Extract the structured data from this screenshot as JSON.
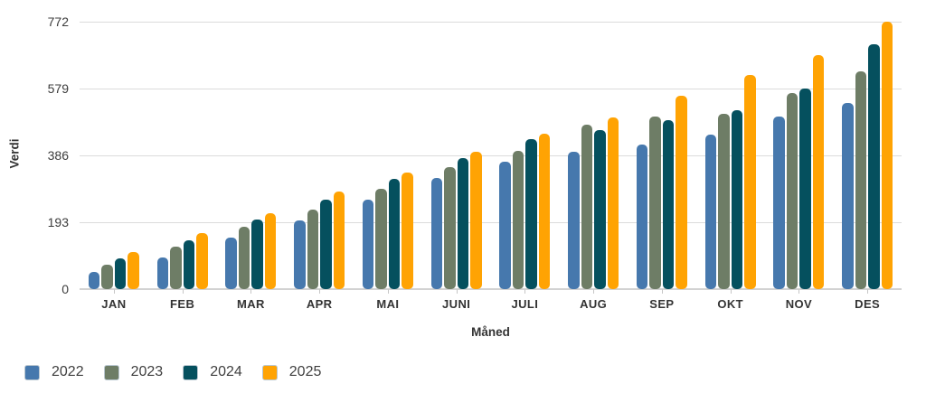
{
  "chart_data": {
    "type": "bar",
    "title": "",
    "xlabel": "Måned",
    "ylabel": "Verdi",
    "categories": [
      "JAN",
      "FEB",
      "MAR",
      "APR",
      "MAI",
      "JUNI",
      "JULI",
      "AUG",
      "SEP",
      "OKT",
      "NOV",
      "DES"
    ],
    "series": [
      {
        "name": "2022",
        "color": "#4678ad",
        "values": [
          49,
          91,
          149,
          198,
          258,
          320,
          368,
          396,
          417,
          446,
          497,
          537
        ]
      },
      {
        "name": "2023",
        "color": "#6e7d66",
        "values": [
          70,
          122,
          180,
          230,
          289,
          352,
          400,
          475,
          497,
          506,
          567,
          628
        ]
      },
      {
        "name": "2024",
        "color": "#05505e",
        "values": [
          89,
          142,
          200,
          259,
          317,
          378,
          433,
          458,
          489,
          517,
          580,
          707
        ]
      },
      {
        "name": "2025",
        "color": "#ffa303",
        "values": [
          107,
          162,
          219,
          281,
          337,
          397,
          449,
          496,
          558,
          617,
          676,
          772
        ]
      }
    ],
    "ylim": [
      0,
      772
    ],
    "yticks": [
      0,
      193,
      386,
      579,
      772
    ],
    "grid": "horizontal",
    "legend_position": "bottom-left",
    "colors": {
      "gridline": "#dbdbdb",
      "axis_text": "#3c3c3c"
    }
  }
}
